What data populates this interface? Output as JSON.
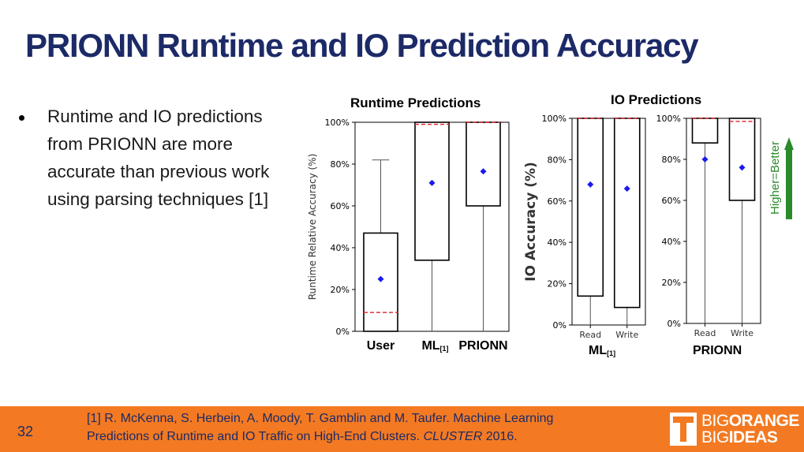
{
  "slide": {
    "title": "PRIONN Runtime and IO Prediction Accuracy",
    "bullet": "Runtime and IO predictions from PRIONN are more accurate than previous work using parsing techniques [1]",
    "higher_better": "Higher=Better",
    "accent_color": "#1c2a67",
    "footer_color": "#f37a22",
    "arrow_color": "#2a8a2a"
  },
  "footer": {
    "page_number": "32",
    "citation_line1": "[1] R. McKenna, S. Herbein, A. Moody, T. Gamblin and M. Taufer. Machine Learning",
    "citation_line2_pre": "Predictions of Runtime and IO Traffic on High-End Clusters. ",
    "citation_venue": "CLUSTER",
    "citation_year": " 2016."
  },
  "logo": {
    "big1": "BIG",
    "orange": "ORANGE",
    "big2": "BIG",
    "ideas": "IDEAS"
  },
  "chart_data": [
    {
      "type": "box",
      "title": "Runtime Predictions",
      "ylabel": "Runtime Relative Accuracy (%)",
      "ylim": [
        0,
        100
      ],
      "yticks": [
        "0%",
        "20%",
        "40%",
        "60%",
        "80%",
        "100%"
      ],
      "categories": [
        "User",
        "ML",
        "PRIONN"
      ],
      "category_subscripts": [
        "",
        "[1]",
        ""
      ],
      "boxes": [
        {
          "whisker_low": 0,
          "q1": 0,
          "median": 9,
          "q3": 47,
          "whisker_high": 82,
          "mean": 25
        },
        {
          "whisker_low": 0,
          "q1": 34,
          "median": 99,
          "q3": 100,
          "whisker_high": 100,
          "mean": 71
        },
        {
          "whisker_low": 0,
          "q1": 60,
          "median": 100,
          "q3": 100,
          "whisker_high": 100,
          "mean": 76.5
        }
      ]
    },
    {
      "type": "box",
      "title": "IO Predictions",
      "ylabel": "IO Accuracy (%)",
      "group_label": "ML",
      "group_subscript": "[1]",
      "ylim": [
        0,
        100
      ],
      "yticks": [
        "0%",
        "20%",
        "40%",
        "60%",
        "80%",
        "100%"
      ],
      "categories": [
        "Read",
        "Write"
      ],
      "boxes": [
        {
          "whisker_low": 0,
          "q1": 14,
          "median": 100,
          "q3": 100,
          "whisker_high": 100,
          "mean": 68
        },
        {
          "whisker_low": 0,
          "q1": 8.5,
          "median": 100,
          "q3": 100,
          "whisker_high": 100,
          "mean": 66
        }
      ]
    },
    {
      "type": "box",
      "group_label": "PRIONN",
      "ylim": [
        0,
        100
      ],
      "yticks": [
        "0%",
        "20%",
        "40%",
        "60%",
        "80%",
        "100%"
      ],
      "categories": [
        "Read",
        "Write"
      ],
      "boxes": [
        {
          "whisker_low": 0,
          "q1": 88,
          "median": 100,
          "q3": 100,
          "whisker_high": 100,
          "mean": 80
        },
        {
          "whisker_low": 0,
          "q1": 60,
          "median": 98.5,
          "q3": 100,
          "whisker_high": 100,
          "mean": 76
        }
      ]
    }
  ]
}
